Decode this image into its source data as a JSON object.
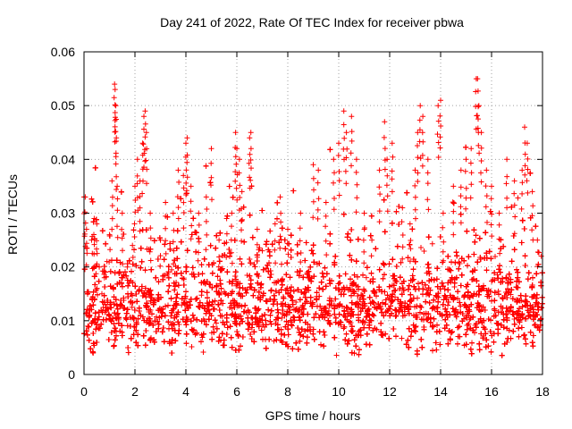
{
  "chart_data": {
    "type": "scatter",
    "title": "Day 241 of 2022, Rate Of TEC Index for receiver pbwa",
    "xlabel": "GPS time / hours",
    "ylabel": "ROTI / TECUs",
    "xlim": [
      0,
      18
    ],
    "ylim": [
      0,
      0.06
    ],
    "x_ticks": [
      0,
      2,
      4,
      6,
      8,
      10,
      12,
      14,
      16,
      18
    ],
    "x_tick_labels": [
      "0",
      "2",
      "4",
      "6",
      "8",
      "10",
      "12",
      "14",
      "16",
      "18"
    ],
    "y_ticks": [
      0,
      0.01,
      0.02,
      0.03,
      0.04,
      0.05,
      0.06
    ],
    "y_tick_labels": [
      "0",
      "0.01",
      "0.02",
      "0.03",
      "0.04",
      "0.05",
      "0.06"
    ],
    "grid": true,
    "marker": "+",
    "marker_color": "#ff0000",
    "point_count_estimate": 9000,
    "distribution_note": "",
    "series": [
      {
        "name": "",
        "color": "#ff0000",
        "points": [
          [
            0.0,
            0.033
          ],
          [
            0.05,
            0.033
          ],
          [
            0.1,
            0.027
          ],
          [
            0.15,
            0.009
          ],
          [
            0.2,
            0.012
          ],
          [
            0.3,
            0.025
          ],
          [
            0.4,
            0.029
          ],
          [
            0.5,
            0.028
          ],
          [
            0.6,
            0.02
          ],
          [
            0.7,
            0.015
          ],
          [
            0.8,
            0.018
          ],
          [
            0.9,
            0.021
          ],
          [
            1.0,
            0.026
          ],
          [
            1.1,
            0.036
          ],
          [
            1.2,
            0.054
          ],
          [
            1.22,
            0.053
          ],
          [
            1.25,
            0.05
          ],
          [
            1.27,
            0.044
          ],
          [
            1.3,
            0.035
          ],
          [
            1.5,
            0.03
          ],
          [
            1.7,
            0.02
          ],
          [
            1.9,
            0.024
          ],
          [
            2.0,
            0.035
          ],
          [
            2.1,
            0.04
          ],
          [
            2.2,
            0.036
          ],
          [
            2.3,
            0.043
          ],
          [
            2.35,
            0.048
          ],
          [
            2.4,
            0.049
          ],
          [
            2.45,
            0.045
          ],
          [
            2.6,
            0.03
          ],
          [
            3.0,
            0.025
          ],
          [
            3.2,
            0.032
          ],
          [
            3.5,
            0.03
          ],
          [
            3.7,
            0.038
          ],
          [
            3.9,
            0.037
          ],
          [
            4.0,
            0.043
          ],
          [
            4.05,
            0.044
          ],
          [
            4.2,
            0.035
          ],
          [
            4.5,
            0.03
          ],
          [
            4.8,
            0.033
          ],
          [
            5.0,
            0.042
          ],
          [
            5.3,
            0.025
          ],
          [
            5.6,
            0.029
          ],
          [
            5.8,
            0.03
          ],
          [
            5.95,
            0.045
          ],
          [
            6.0,
            0.042
          ],
          [
            6.1,
            0.04
          ],
          [
            6.2,
            0.034
          ],
          [
            6.5,
            0.044
          ],
          [
            6.55,
            0.045
          ],
          [
            6.8,
            0.027
          ],
          [
            7.0,
            0.023
          ],
          [
            7.5,
            0.028
          ],
          [
            7.7,
            0.033
          ],
          [
            8.0,
            0.027
          ],
          [
            8.5,
            0.03
          ],
          [
            9.0,
            0.039
          ],
          [
            9.2,
            0.038
          ],
          [
            9.5,
            0.032
          ],
          [
            9.8,
            0.04
          ],
          [
            10.0,
            0.043
          ],
          [
            10.2,
            0.049
          ],
          [
            10.3,
            0.045
          ],
          [
            10.5,
            0.048
          ],
          [
            10.7,
            0.04
          ],
          [
            11.0,
            0.03
          ],
          [
            11.3,
            0.025
          ],
          [
            11.6,
            0.038
          ],
          [
            11.8,
            0.047
          ],
          [
            11.9,
            0.04
          ],
          [
            12.1,
            0.043
          ],
          [
            12.5,
            0.031
          ],
          [
            12.8,
            0.028
          ],
          [
            13.0,
            0.038
          ],
          [
            13.1,
            0.045
          ],
          [
            13.2,
            0.05
          ],
          [
            13.3,
            0.048
          ],
          [
            13.5,
            0.04
          ],
          [
            13.9,
            0.05
          ],
          [
            14.0,
            0.051
          ],
          [
            14.1,
            0.03
          ],
          [
            14.5,
            0.035
          ],
          [
            14.8,
            0.038
          ],
          [
            15.0,
            0.04
          ],
          [
            15.2,
            0.042
          ],
          [
            15.4,
            0.055
          ],
          [
            15.45,
            0.055
          ],
          [
            15.5,
            0.05
          ],
          [
            15.6,
            0.045
          ],
          [
            15.8,
            0.038
          ],
          [
            16.0,
            0.035
          ],
          [
            16.3,
            0.03
          ],
          [
            16.6,
            0.04
          ],
          [
            16.9,
            0.036
          ],
          [
            17.2,
            0.038
          ],
          [
            17.3,
            0.046
          ],
          [
            17.4,
            0.043
          ],
          [
            17.6,
            0.034
          ],
          [
            17.8,
            0.025
          ],
          [
            17.95,
            0.022
          ]
        ]
      }
    ]
  }
}
